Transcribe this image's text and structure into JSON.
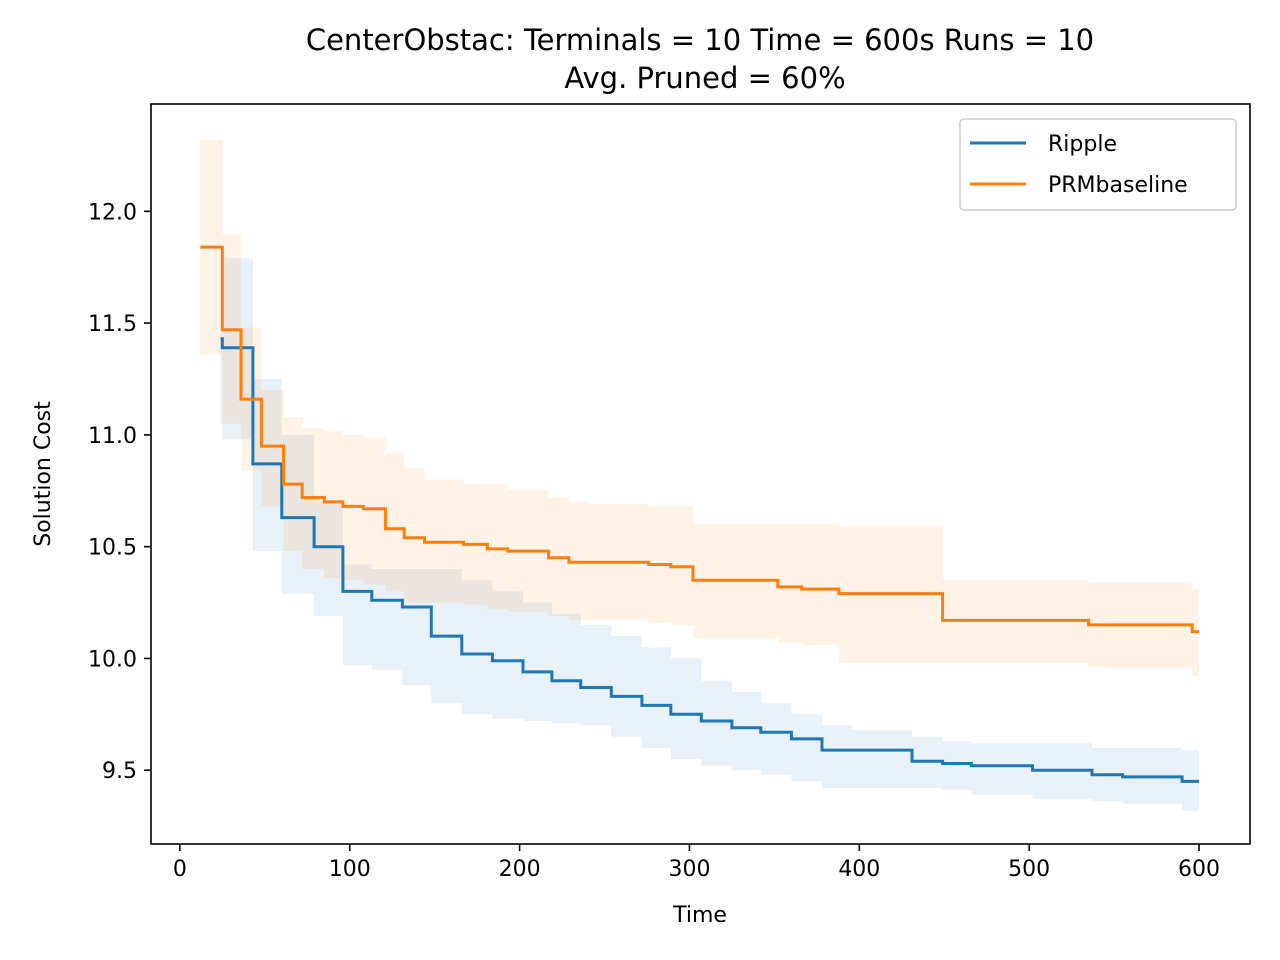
{
  "chart_data": {
    "type": "line",
    "title_line1": "CenterObstac:  Terminals = 10  Time = 600s  Runs = 10",
    "title_line2": "Avg. Pruned = 60%",
    "xlabel": "Time",
    "ylabel": "Solution Cost",
    "xlim": [
      -17,
      630
    ],
    "ylim": [
      9.17,
      12.48
    ],
    "xticks": [
      0,
      100,
      200,
      300,
      400,
      500,
      600
    ],
    "yticks": [
      9.5,
      10.0,
      10.5,
      11.0,
      11.5,
      12.0
    ],
    "xtick_labels": [
      "0",
      "100",
      "200",
      "300",
      "400",
      "500",
      "600"
    ],
    "ytick_labels": [
      "9.5",
      "10.0",
      "10.5",
      "11.0",
      "11.5",
      "12.0"
    ],
    "grid": false,
    "legend_position": "top-right",
    "series": [
      {
        "name": "Ripple",
        "color": "#1f77b4",
        "band_color": "#1f77b4",
        "band_opacity": 0.1,
        "steps": [
          [
            24,
            11.43
          ],
          [
            25,
            11.39
          ],
          [
            43,
            10.87
          ],
          [
            60,
            10.63
          ],
          [
            79,
            10.5
          ],
          [
            96,
            10.3
          ],
          [
            113,
            10.26
          ],
          [
            131,
            10.23
          ],
          [
            148,
            10.1
          ],
          [
            166,
            10.02
          ],
          [
            184,
            9.99
          ],
          [
            202,
            9.94
          ],
          [
            219,
            9.9
          ],
          [
            236,
            9.87
          ],
          [
            254,
            9.83
          ],
          [
            272,
            9.79
          ],
          [
            289,
            9.75
          ],
          [
            307,
            9.72
          ],
          [
            325,
            9.69
          ],
          [
            342,
            9.67
          ],
          [
            360,
            9.64
          ],
          [
            378,
            9.59
          ],
          [
            396,
            9.59
          ],
          [
            431,
            9.54
          ],
          [
            449,
            9.53
          ],
          [
            466,
            9.52
          ],
          [
            502,
            9.5
          ],
          [
            537,
            9.48
          ],
          [
            555,
            9.47
          ],
          [
            590,
            9.45
          ],
          [
            600,
            9.45
          ]
        ],
        "band": [
          [
            24,
            11.45,
            11.05
          ],
          [
            25,
            11.79,
            10.98
          ],
          [
            43,
            11.25,
            10.48
          ],
          [
            60,
            11.0,
            10.29
          ],
          [
            79,
            10.7,
            10.19
          ],
          [
            96,
            10.42,
            9.97
          ],
          [
            113,
            10.4,
            9.95
          ],
          [
            131,
            10.4,
            9.88
          ],
          [
            148,
            10.4,
            9.8
          ],
          [
            166,
            10.35,
            9.75
          ],
          [
            184,
            10.3,
            9.73
          ],
          [
            202,
            10.25,
            9.72
          ],
          [
            219,
            10.2,
            9.71
          ],
          [
            236,
            10.15,
            9.7
          ],
          [
            254,
            10.1,
            9.65
          ],
          [
            272,
            10.05,
            9.6
          ],
          [
            289,
            10.0,
            9.55
          ],
          [
            307,
            9.9,
            9.52
          ],
          [
            325,
            9.85,
            9.5
          ],
          [
            342,
            9.8,
            9.48
          ],
          [
            360,
            9.75,
            9.45
          ],
          [
            378,
            9.7,
            9.42
          ],
          [
            396,
            9.68,
            9.42
          ],
          [
            431,
            9.65,
            9.42
          ],
          [
            449,
            9.63,
            9.41
          ],
          [
            466,
            9.62,
            9.39
          ],
          [
            502,
            9.62,
            9.37
          ],
          [
            537,
            9.6,
            9.36
          ],
          [
            555,
            9.6,
            9.35
          ],
          [
            590,
            9.59,
            9.32
          ],
          [
            600,
            9.59,
            9.32
          ]
        ]
      },
      {
        "name": "PRMbaseline",
        "color": "#ff7f0e",
        "band_color": "#ff7f0e",
        "band_opacity": 0.1,
        "steps": [
          [
            12,
            11.84
          ],
          [
            25,
            11.47
          ],
          [
            36,
            11.16
          ],
          [
            48,
            10.95
          ],
          [
            61,
            10.78
          ],
          [
            72,
            10.72
          ],
          [
            85,
            10.7
          ],
          [
            96,
            10.68
          ],
          [
            108,
            10.67
          ],
          [
            121,
            10.58
          ],
          [
            132,
            10.54
          ],
          [
            144,
            10.52
          ],
          [
            167,
            10.51
          ],
          [
            181,
            10.49
          ],
          [
            193,
            10.48
          ],
          [
            217,
            10.45
          ],
          [
            229,
            10.43
          ],
          [
            240,
            10.43
          ],
          [
            264,
            10.43
          ],
          [
            276,
            10.42
          ],
          [
            289,
            10.41
          ],
          [
            302,
            10.35
          ],
          [
            352,
            10.32
          ],
          [
            366,
            10.31
          ],
          [
            388,
            10.29
          ],
          [
            449,
            10.17
          ],
          [
            535,
            10.15
          ],
          [
            596,
            10.12
          ],
          [
            600,
            10.12
          ]
        ],
        "band": [
          [
            12,
            12.32,
            11.36
          ],
          [
            25,
            11.9,
            11.05
          ],
          [
            36,
            11.48,
            10.84
          ],
          [
            48,
            11.2,
            10.68
          ],
          [
            61,
            11.08,
            10.48
          ],
          [
            72,
            11.03,
            10.4
          ],
          [
            85,
            11.02,
            10.36
          ],
          [
            96,
            11.0,
            10.35
          ],
          [
            108,
            10.99,
            10.33
          ],
          [
            121,
            10.92,
            10.3
          ],
          [
            132,
            10.85,
            10.25
          ],
          [
            144,
            10.8,
            10.25
          ],
          [
            167,
            10.78,
            10.24
          ],
          [
            181,
            10.78,
            10.22
          ],
          [
            193,
            10.75,
            10.21
          ],
          [
            217,
            10.72,
            10.19
          ],
          [
            229,
            10.7,
            10.17
          ],
          [
            240,
            10.69,
            10.17
          ],
          [
            264,
            10.69,
            10.17
          ],
          [
            276,
            10.68,
            10.16
          ],
          [
            289,
            10.68,
            10.15
          ],
          [
            302,
            10.6,
            10.09
          ],
          [
            352,
            10.6,
            10.07
          ],
          [
            366,
            10.6,
            10.06
          ],
          [
            388,
            10.59,
            9.98
          ],
          [
            449,
            10.35,
            9.98
          ],
          [
            535,
            10.34,
            9.96
          ],
          [
            596,
            10.31,
            9.92
          ],
          [
            600,
            10.31,
            9.92
          ]
        ]
      }
    ]
  }
}
